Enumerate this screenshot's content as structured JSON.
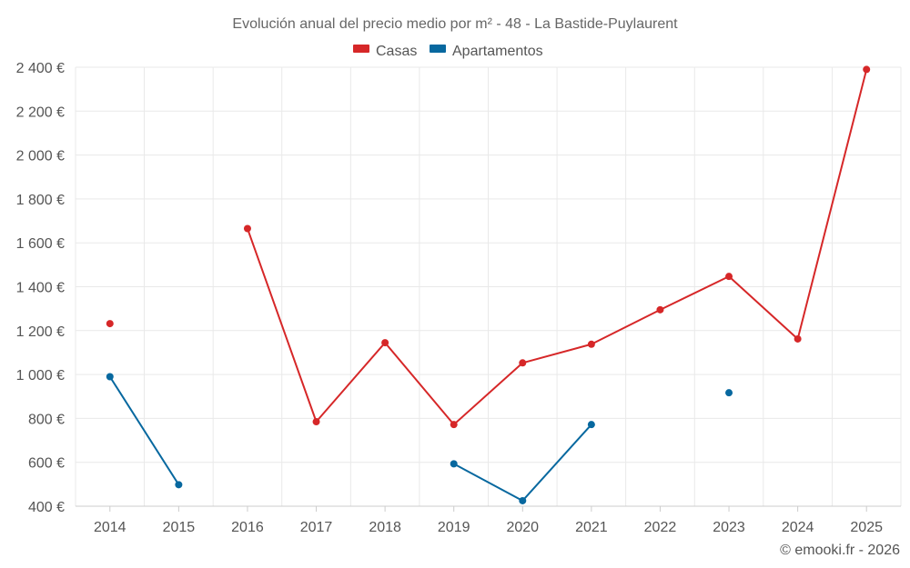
{
  "chart_data": {
    "type": "line",
    "title": "Evolución anual del precio medio por m² - 48 - La Bastide-Puylaurent",
    "categories": [
      "2014",
      "2015",
      "2016",
      "2017",
      "2018",
      "2019",
      "2020",
      "2021",
      "2022",
      "2023",
      "2024",
      "2025"
    ],
    "yticks": [
      "400 €",
      "600 €",
      "800 €",
      "1 000 €",
      "1 200 €",
      "1 400 €",
      "1 600 €",
      "1 800 €",
      "2 000 €",
      "2 200 €",
      "2 400 €"
    ],
    "ytick_values": [
      400,
      600,
      800,
      1000,
      1200,
      1400,
      1600,
      1800,
      2000,
      2200,
      2400
    ],
    "ylim": [
      400,
      2400
    ],
    "xlabel": "",
    "ylabel": "",
    "legend_position": "top-center",
    "grid": true,
    "series": [
      {
        "name": "Casas",
        "color": "#d62728",
        "values": [
          1232,
          null,
          1665,
          785,
          1145,
          772,
          1053,
          1138,
          1295,
          1447,
          1162,
          2390
        ]
      },
      {
        "name": "Apartamentos",
        "color": "#07689f",
        "values": [
          990,
          498,
          null,
          null,
          null,
          593,
          425,
          772,
          null,
          917,
          null,
          null
        ]
      }
    ]
  },
  "credit": "© emooki.fr - 2026"
}
